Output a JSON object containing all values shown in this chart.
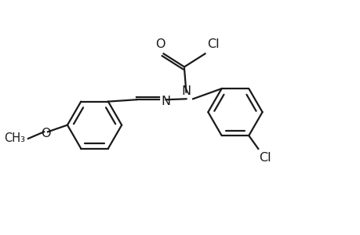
{
  "bg_color": "#ffffff",
  "line_color": "#1a1a1a",
  "line_width": 1.6,
  "font_size": 11.5,
  "figsize": [
    4.6,
    3.0
  ],
  "dpi": 100,
  "xlim": [
    0,
    9.2
  ],
  "ylim": [
    0,
    6.0
  ]
}
